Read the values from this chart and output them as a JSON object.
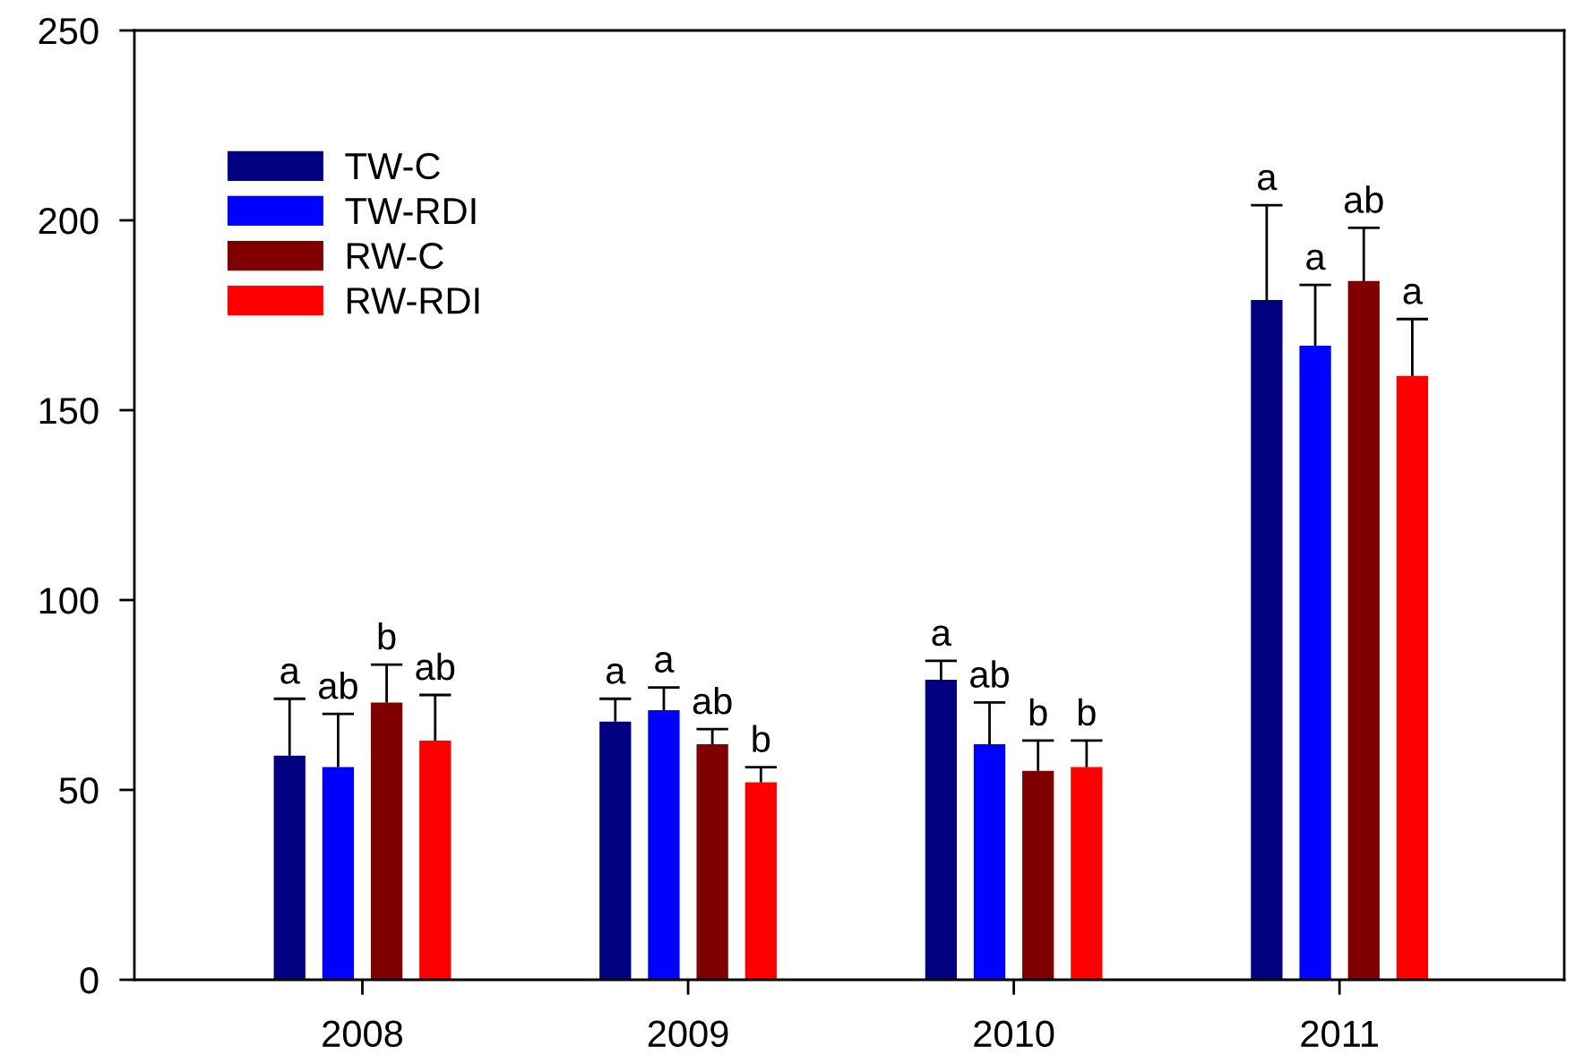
{
  "chart_data": {
    "type": "bar",
    "categories": [
      "2008",
      "2009",
      "2010",
      "2011"
    ],
    "series": [
      {
        "name": "TW-C",
        "color": "#000080",
        "values": [
          59,
          68,
          79,
          179
        ],
        "errors": [
          [
            59,
            74
          ],
          [
            68,
            74
          ],
          [
            79,
            84
          ],
          [
            179,
            204
          ]
        ],
        "value_labels": [
          "a",
          "a",
          "a",
          "a"
        ]
      },
      {
        "name": "TW-RDI",
        "color": "#0000ff",
        "values": [
          56,
          71,
          62,
          167
        ],
        "errors": [
          [
            56,
            70
          ],
          [
            71,
            77
          ],
          [
            62,
            73
          ],
          [
            167,
            183
          ]
        ],
        "value_labels": [
          "ab",
          "a",
          "ab",
          "a"
        ]
      },
      {
        "name": "RW-C",
        "color": "#800000",
        "values": [
          73,
          62,
          55,
          184
        ],
        "errors": [
          [
            73,
            83
          ],
          [
            62,
            66
          ],
          [
            55,
            63
          ],
          [
            184,
            198
          ]
        ],
        "value_labels": [
          "b",
          "ab",
          "b",
          "ab"
        ]
      },
      {
        "name": "RW-RDI",
        "color": "#ff0000",
        "values": [
          63,
          52,
          56,
          159
        ],
        "errors": [
          [
            63,
            75
          ],
          [
            52,
            56
          ],
          [
            56,
            63
          ],
          [
            159,
            174
          ]
        ],
        "value_labels": [
          "ab",
          "b",
          "b",
          "a"
        ]
      }
    ],
    "ylim": [
      0,
      250
    ],
    "yticks": [
      0,
      50,
      100,
      150,
      200,
      250
    ],
    "grid": false,
    "legend": "top left"
  }
}
